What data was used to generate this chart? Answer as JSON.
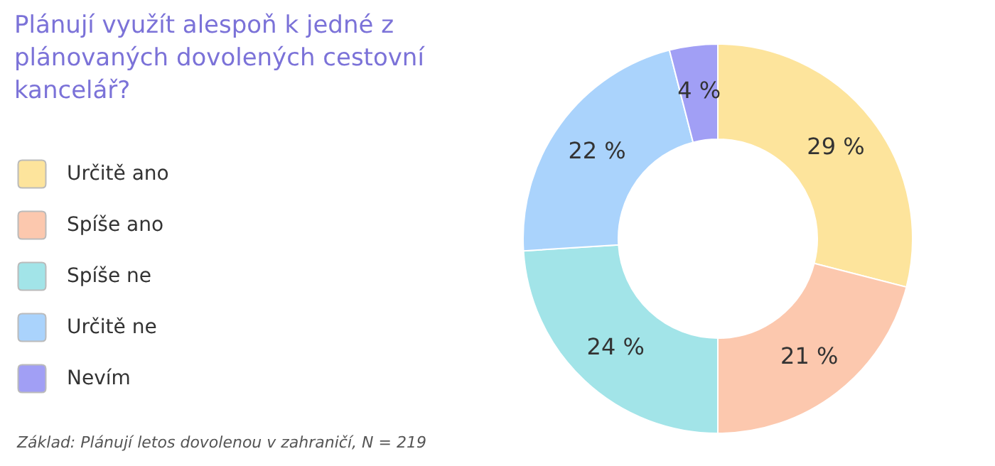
{
  "chart_data": {
    "type": "donut",
    "title": "Plánují využít alespoň k jedné z plánovaných dovolených cestovní kancelář?",
    "categories": [
      "Určitě ano",
      "Spíše ano",
      "Spíše ne",
      "Určitě ne",
      "Nevím"
    ],
    "values": [
      29,
      21,
      24,
      22,
      4
    ],
    "colors": [
      "#fde49c",
      "#fcc8ae",
      "#a2e4e8",
      "#aad3fc",
      "#a19ff5"
    ],
    "value_labels": [
      "29 %",
      "21 %",
      "24 %",
      "22 %",
      "4 %"
    ],
    "legend": "left",
    "annotations": [
      "Základ: Plánují letos dovolenou v zahraničí, N = 219"
    ]
  }
}
